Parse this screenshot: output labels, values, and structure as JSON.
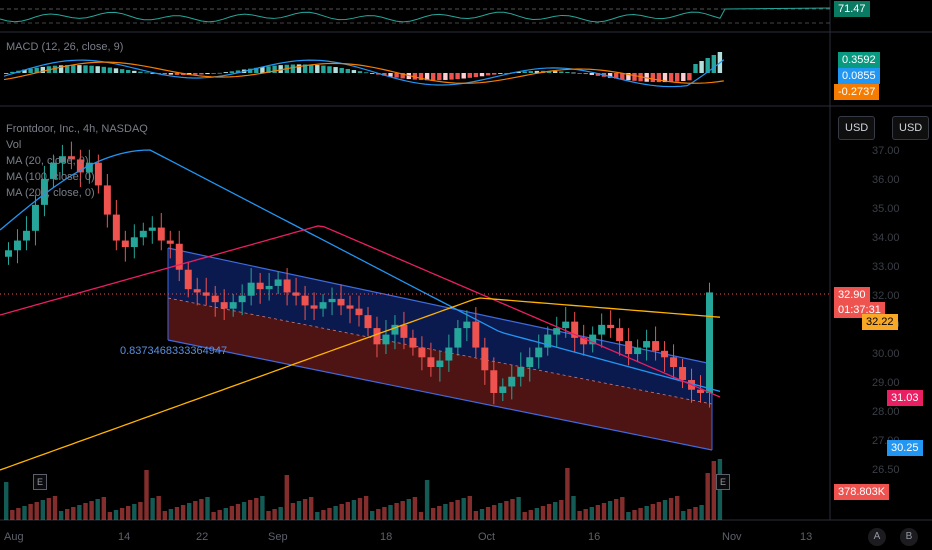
{
  "rsi": {
    "value": "71.47"
  },
  "macd": {
    "label": "MACD (12, 26, close, 9)",
    "histogram": "0.3592",
    "macd_line": "0.0855",
    "signal": "-0.2737"
  },
  "main": {
    "title": "Frontdoor, Inc., 4h, NASDAQ",
    "legends": [
      "Vol",
      "MA (20, close, 0)",
      "MA (100, close, 0)",
      "MA (200, close, 0)"
    ],
    "channel_label": "0.8373468333364947",
    "price": "32.90",
    "countdown": "01:37:31",
    "ma_yellow": "32.22",
    "ma_red": "31.03",
    "ma_blue": "30.25",
    "volume": "378.803K",
    "currency_left": "USD",
    "currency_right": "USD",
    "axis_ticks": [
      "37.00",
      "36.00",
      "35.00",
      "34.00",
      "33.00",
      "32.00",
      "31.00",
      "30.00",
      "29.00",
      "28.00",
      "27.00",
      "26.50"
    ],
    "earnings_marker": "E"
  },
  "time_axis": [
    "Aug",
    "14",
    "22",
    "Sep",
    "18",
    "Oct",
    "16",
    "Nov",
    "13"
  ],
  "scale_buttons": [
    "A",
    "B"
  ],
  "colors": {
    "up": "#26a69a",
    "down": "#ef5350",
    "ma20": "#2196f3",
    "ma100": "#e91e63",
    "ma200": "#ffb300",
    "channel_top": "#0d1f5c",
    "channel_bottom": "#5c1616"
  },
  "chart_data": {
    "type": "candlestick",
    "close_series": [
      34.2,
      34.5,
      34.8,
      35.6,
      36.4,
      36.9,
      37.1,
      37.0,
      36.6,
      36.9,
      36.2,
      35.3,
      34.5,
      34.3,
      34.6,
      34.8,
      34.9,
      34.5,
      34.4,
      33.6,
      33.0,
      32.9,
      32.8,
      32.6,
      32.4,
      32.6,
      32.8,
      33.2,
      33.0,
      33.1,
      33.3,
      32.9,
      32.8,
      32.5,
      32.4,
      32.6,
      32.7,
      32.5,
      32.4,
      32.2,
      31.8,
      31.3,
      31.6,
      31.9,
      31.5,
      31.2,
      30.9,
      30.6,
      30.8,
      31.2,
      31.8,
      32.0,
      31.2,
      30.5,
      29.8,
      30.0,
      30.3,
      30.6,
      30.9,
      31.2,
      31.6,
      31.8,
      32.0,
      31.5,
      31.3,
      31.6,
      31.9,
      31.8,
      31.4,
      31.0,
      31.2,
      31.4,
      31.1,
      30.9,
      30.6,
      30.2,
      29.9,
      29.8,
      32.9
    ],
    "price_scale": [
      26.5,
      37.0
    ],
    "current_price": 32.9
  }
}
